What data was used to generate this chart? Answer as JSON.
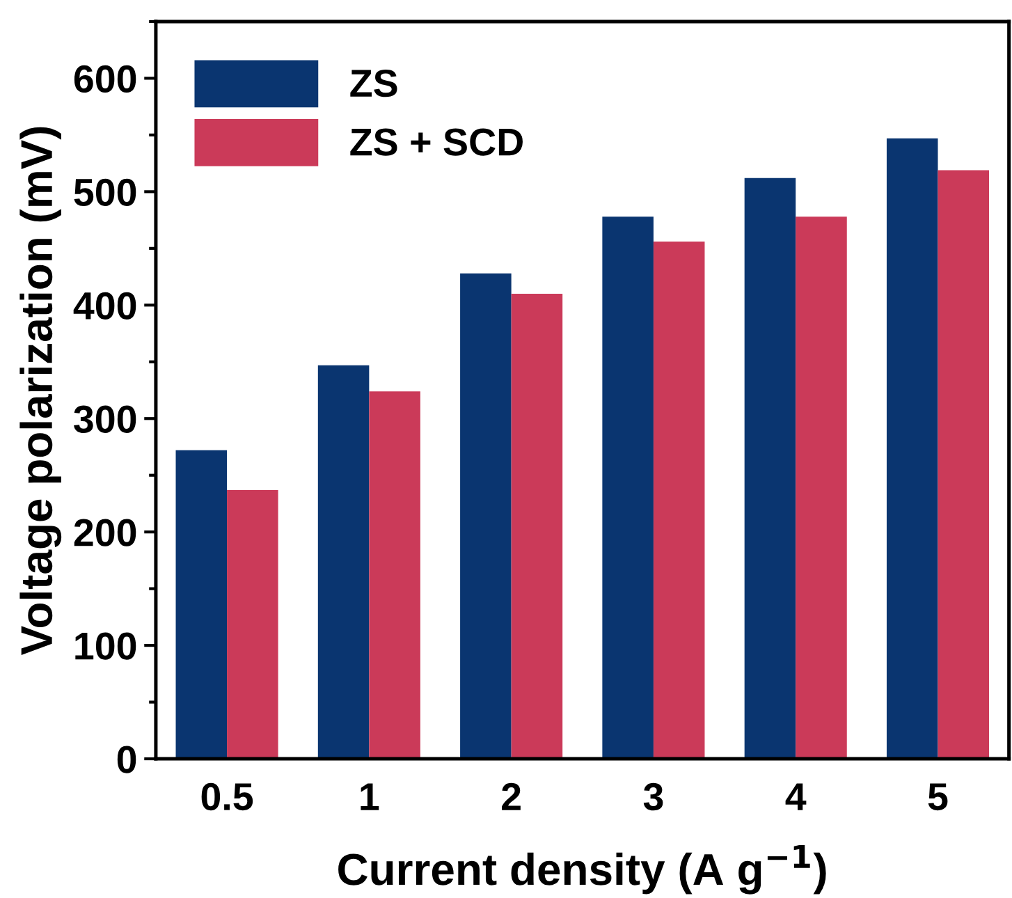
{
  "chart_data": {
    "type": "bar",
    "xlabel": "Current density (A g$^{−1}$)",
    "ylabel": "Voltage polarization (mV)",
    "categories": [
      "0.5",
      "1",
      "2",
      "3",
      "4",
      "5"
    ],
    "series": [
      {
        "name": "ZS",
        "color": "#0a3570",
        "values": [
          272,
          347,
          428,
          478,
          512,
          547
        ]
      },
      {
        "name": "ZS + SCD",
        "color": "#cb3a59",
        "values": [
          237,
          324,
          410,
          456,
          478,
          519
        ]
      }
    ],
    "ylim": [
      0,
      650
    ],
    "yticks": [
      0,
      100,
      200,
      300,
      400,
      500,
      600
    ],
    "grid": false,
    "legend": "top left"
  }
}
